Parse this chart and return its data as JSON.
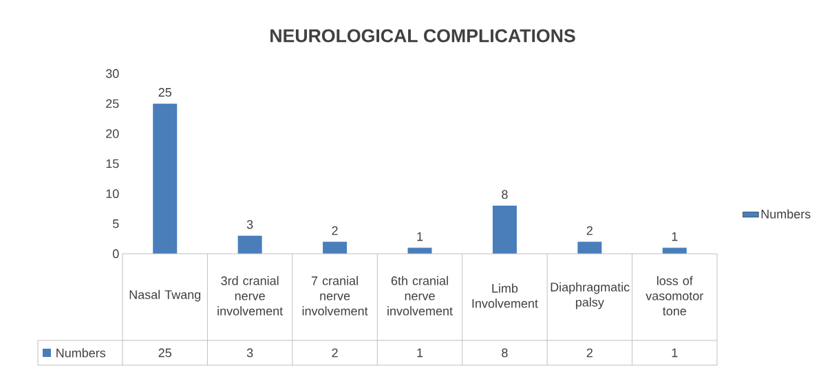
{
  "chart_data": {
    "type": "bar",
    "title": "NEUROLOGICAL  COMPLICATIONS",
    "categories": [
      "Nasal Twang",
      "3rd cranial nerve involvement",
      "7 cranial nerve involvement",
      "6th cranial nerve involvement",
      "Limb Involvement",
      "Diaphragmatic palsy",
      "loss of vasomotor tone"
    ],
    "series": [
      {
        "name": "Numbers",
        "color": "#4a7ebb",
        "values": [
          25,
          3,
          2,
          1,
          8,
          2,
          1
        ],
        "value_labels": [
          "25",
          "3",
          "2",
          "1",
          "8",
          "2",
          "1"
        ]
      }
    ],
    "ylim": [
      0,
      30
    ],
    "yticks": [
      0,
      5,
      10,
      15,
      20,
      25,
      30
    ],
    "annotations": [
      "25",
      "3",
      "2",
      "1",
      "8",
      "2",
      "1"
    ],
    "data_labels": true,
    "legend": "right"
  }
}
